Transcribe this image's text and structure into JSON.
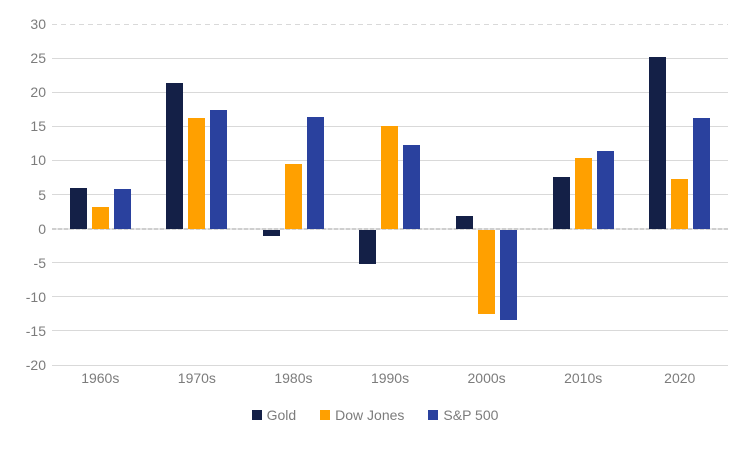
{
  "chart_data": {
    "type": "bar",
    "title": "",
    "xlabel": "",
    "ylabel": "",
    "categories": [
      "1960s",
      "1970s",
      "1980s",
      "1990s",
      "2000s",
      "2010s",
      "2020"
    ],
    "series": [
      {
        "name": "Gold",
        "color": "#142047",
        "values": [
          5.9,
          21.4,
          -0.9,
          -5.1,
          1.8,
          7.5,
          25.1
        ]
      },
      {
        "name": "Dow Jones",
        "color": "#FFA000",
        "values": [
          3.1,
          16.2,
          9.5,
          15.0,
          -12.4,
          10.3,
          7.2
        ]
      },
      {
        "name": "S&P 500",
        "color": "#2A419E",
        "values": [
          5.8,
          17.4,
          16.4,
          12.3,
          -13.2,
          11.4,
          16.2
        ]
      }
    ],
    "ylim": [
      -20,
      30
    ],
    "yticks": [
      30,
      25,
      20,
      15,
      10,
      5,
      0,
      -5,
      -10,
      -15,
      -20
    ],
    "grid": "horizontal",
    "legend_position": "bottom",
    "styles": {
      "gridline_color": "#D9D9D9",
      "axis_text_color": "#7C7C7C",
      "background": "#FFFFFF"
    }
  }
}
